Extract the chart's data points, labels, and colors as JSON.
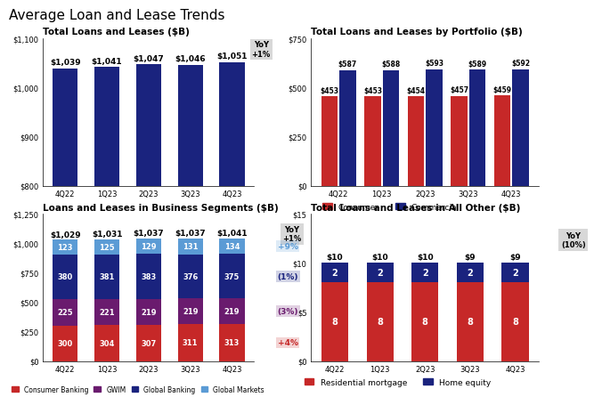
{
  "title": "Average Loan and Lease Trends",
  "background_color": "#ffffff",
  "quarters": [
    "4Q22",
    "1Q23",
    "2Q23",
    "3Q23",
    "4Q23"
  ],
  "chart1": {
    "title": "Total Loans and Leases ($B)",
    "ymin": 800,
    "ymax": 1100,
    "yticks": [
      800,
      900,
      1000,
      1100
    ],
    "ytick_labels": [
      "$800",
      "$900",
      "$1,000",
      "$1,100"
    ],
    "values": [
      1039,
      1041,
      1047,
      1046,
      1051
    ],
    "bar_labels": [
      "$1,039",
      "$1,041",
      "$1,047",
      "$1,046",
      "$1,051"
    ],
    "bar_color": "#1a237e",
    "yoy_text": "YoY\n+1%"
  },
  "chart2": {
    "title": "Total Loans and Leases by Portfolio ($B)",
    "ymin": 0,
    "ymax": 750,
    "yticks": [
      0,
      250,
      500,
      750
    ],
    "ytick_labels": [
      "$0",
      "$250",
      "$500",
      "$750"
    ],
    "consumer": [
      453,
      453,
      454,
      457,
      459
    ],
    "commercial": [
      587,
      588,
      593,
      589,
      592
    ],
    "consumer_labels": [
      "$453",
      "$453",
      "$454",
      "$457",
      "$459"
    ],
    "commercial_labels": [
      "$587",
      "$588",
      "$593",
      "$589",
      "$592"
    ],
    "consumer_color": "#c62828",
    "commercial_color": "#1a237e"
  },
  "chart3": {
    "title": "Loans and Leases in Business Segments ($B)",
    "ymin": 0,
    "ymax": 1250,
    "yticks": [
      0,
      250,
      500,
      750,
      1000,
      1250
    ],
    "ytick_labels": [
      "$0",
      "$250",
      "$500",
      "$750",
      "$1,000",
      "$1,250"
    ],
    "consumer_banking": [
      300,
      304,
      307,
      311,
      313
    ],
    "gwim": [
      225,
      221,
      219,
      219,
      219
    ],
    "global_banking": [
      380,
      381,
      383,
      376,
      375
    ],
    "global_markets": [
      123,
      125,
      129,
      131,
      134
    ],
    "total_labels": [
      "$1,029",
      "$1,031",
      "$1,037",
      "$1,037",
      "$1,041"
    ],
    "consumer_banking_color": "#c62828",
    "gwim_color": "#6a1b6e",
    "global_banking_color": "#1a237e",
    "global_markets_color": "#5b9bd5",
    "yoy_total": "YoY\n+1%",
    "yoy_segments": [
      "+9%",
      "(1%)",
      "(3%)",
      "+4%"
    ],
    "yoy_seg_colors": [
      "#5b9bd5",
      "#1a237e",
      "#6a1b6e",
      "#c62828"
    ]
  },
  "chart4": {
    "title": "Total Loans and Leases in All Other ($B)",
    "ymin": 0,
    "ymax": 15,
    "yticks": [
      0,
      5,
      10,
      15
    ],
    "ytick_labels": [
      "$0",
      "$5",
      "$10",
      "$15"
    ],
    "res_mortgage": [
      8,
      8,
      8,
      8,
      8
    ],
    "home_equity": [
      2,
      2,
      2,
      2,
      2
    ],
    "total_labels": [
      "$10",
      "$10",
      "$10",
      "$9",
      "$9"
    ],
    "res_color": "#c62828",
    "home_color": "#1a237e",
    "yoy_text": "YoY\n(10%)"
  }
}
